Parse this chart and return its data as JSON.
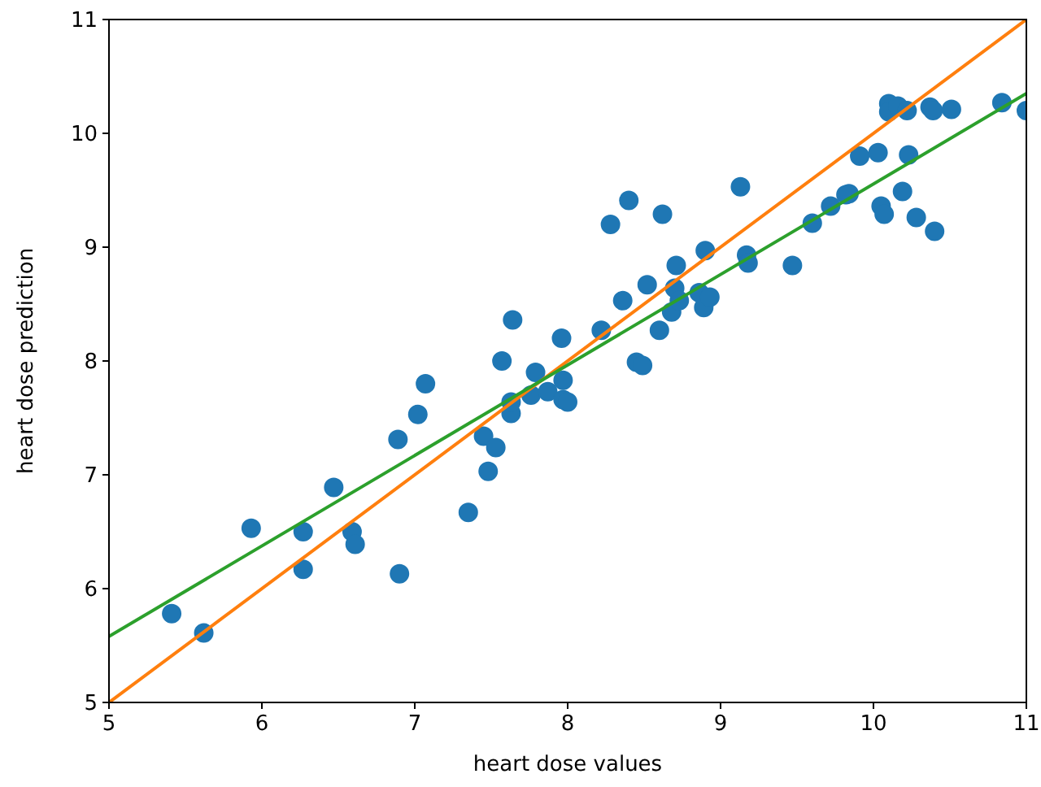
{
  "chart_data": {
    "type": "scatter",
    "xlabel": "heart dose values",
    "ylabel": "heart dose prediction",
    "xlim": [
      5,
      11
    ],
    "ylim": [
      5,
      11
    ],
    "xticks": [
      5,
      6,
      7,
      8,
      9,
      10,
      11
    ],
    "yticks": [
      5,
      6,
      7,
      8,
      9,
      10,
      11
    ],
    "grid": false,
    "series": [
      {
        "marker": "circle",
        "color": "#1f77b4",
        "x": [
          5.41,
          5.62,
          5.93,
          6.27,
          6.27,
          6.47,
          6.59,
          6.61,
          6.9,
          6.89,
          7.02,
          7.07,
          7.35,
          7.45,
          7.48,
          7.53,
          7.57,
          7.63,
          7.63,
          7.64,
          7.76,
          7.79,
          7.87,
          7.96,
          7.97,
          7.97,
          8.0,
          8.22,
          8.28,
          8.36,
          8.4,
          8.45,
          8.49,
          8.52,
          8.6,
          8.62,
          8.68,
          8.7,
          8.71,
          8.73,
          8.86,
          8.89,
          8.9,
          8.93,
          9.13,
          9.17,
          9.18,
          9.47,
          9.6,
          9.72,
          9.82,
          9.84,
          9.91,
          10.03,
          10.05,
          10.07,
          10.1,
          10.1,
          10.16,
          10.19,
          10.22,
          10.23,
          10.28,
          10.37,
          10.39,
          10.4,
          10.51,
          10.84,
          11.0
        ],
        "values": [
          5.78,
          5.61,
          6.53,
          6.5,
          6.17,
          6.89,
          6.5,
          6.39,
          6.13,
          7.31,
          7.53,
          7.8,
          6.67,
          7.34,
          7.03,
          7.24,
          8.0,
          7.54,
          7.64,
          8.36,
          7.7,
          7.9,
          7.73,
          8.2,
          7.83,
          7.66,
          7.64,
          8.27,
          9.2,
          8.53,
          9.41,
          7.99,
          7.96,
          8.67,
          8.27,
          9.29,
          8.43,
          8.64,
          8.84,
          8.53,
          8.6,
          8.47,
          8.97,
          8.56,
          9.53,
          8.93,
          8.86,
          8.84,
          9.21,
          9.36,
          9.46,
          9.47,
          9.8,
          9.83,
          9.36,
          9.29,
          10.26,
          10.19,
          10.24,
          9.49,
          10.2,
          9.81,
          9.26,
          10.23,
          10.2,
          9.14,
          10.21,
          10.27,
          10.2
        ]
      },
      {
        "type": "line",
        "color": "#ff7f0e",
        "x": [
          5,
          11
        ],
        "values": [
          5,
          11
        ]
      },
      {
        "type": "line",
        "color": "#2ca02c",
        "x": [
          5,
          11
        ],
        "values": [
          5.58,
          10.35
        ]
      }
    ]
  }
}
